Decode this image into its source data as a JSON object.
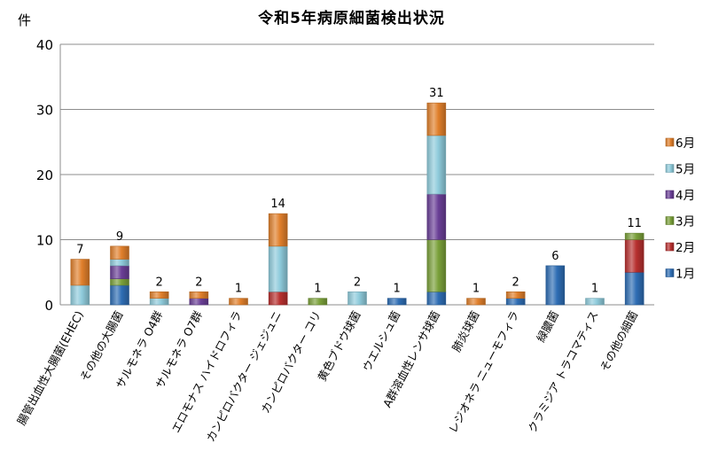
{
  "chart_data": {
    "type": "bar",
    "stacked": true,
    "title": "令和5年病原細菌検出状況",
    "ylabel": "件",
    "xlabel": "",
    "ylim": [
      0,
      40
    ],
    "yticks": [
      0,
      10,
      20,
      30,
      40
    ],
    "grid": true,
    "legend_position": "right",
    "categories": [
      "腸管出血性大腸菌(EHEC)",
      "その他の大腸菌",
      "サルモネラ O4群",
      "サルモネラ O7群",
      "エロモナス ハイドロフィラ",
      "カンピロバクター ジェジュニ",
      "カンピロバクター コリ",
      "黄色ブドウ球菌",
      "ウエルシュ菌",
      "A群溶血性レンサ球菌",
      "肺炎球菌",
      "レジオネラ ニューモフィラ",
      "緑膿菌",
      "クラミジア トラコマティス",
      "その他の細菌"
    ],
    "totals": [
      7,
      9,
      2,
      2,
      1,
      14,
      1,
      2,
      1,
      31,
      1,
      2,
      6,
      1,
      11
    ],
    "series": [
      {
        "name": "1月",
        "color": "#2e6db4",
        "values": [
          0,
          3,
          0,
          0,
          0,
          0,
          0,
          0,
          1,
          2,
          0,
          1,
          6,
          0,
          5
        ]
      },
      {
        "name": "2月",
        "color": "#b7302f",
        "values": [
          0,
          0,
          0,
          0,
          0,
          2,
          0,
          0,
          0,
          0,
          0,
          0,
          0,
          0,
          5
        ]
      },
      {
        "name": "3月",
        "color": "#7aa03a",
        "values": [
          0,
          1,
          0,
          0,
          0,
          0,
          1,
          0,
          0,
          8,
          0,
          0,
          0,
          0,
          1
        ]
      },
      {
        "name": "4月",
        "color": "#6a3f96",
        "values": [
          0,
          2,
          0,
          1,
          0,
          0,
          0,
          0,
          0,
          7,
          0,
          0,
          0,
          0,
          0
        ]
      },
      {
        "name": "5月",
        "color": "#8ecbdb",
        "values": [
          3,
          1,
          1,
          0,
          0,
          7,
          0,
          2,
          0,
          9,
          0,
          0,
          0,
          1,
          0
        ]
      },
      {
        "name": "6月",
        "color": "#e07f2b",
        "values": [
          4,
          2,
          1,
          1,
          1,
          5,
          0,
          0,
          0,
          5,
          1,
          1,
          0,
          0,
          0
        ]
      }
    ]
  }
}
